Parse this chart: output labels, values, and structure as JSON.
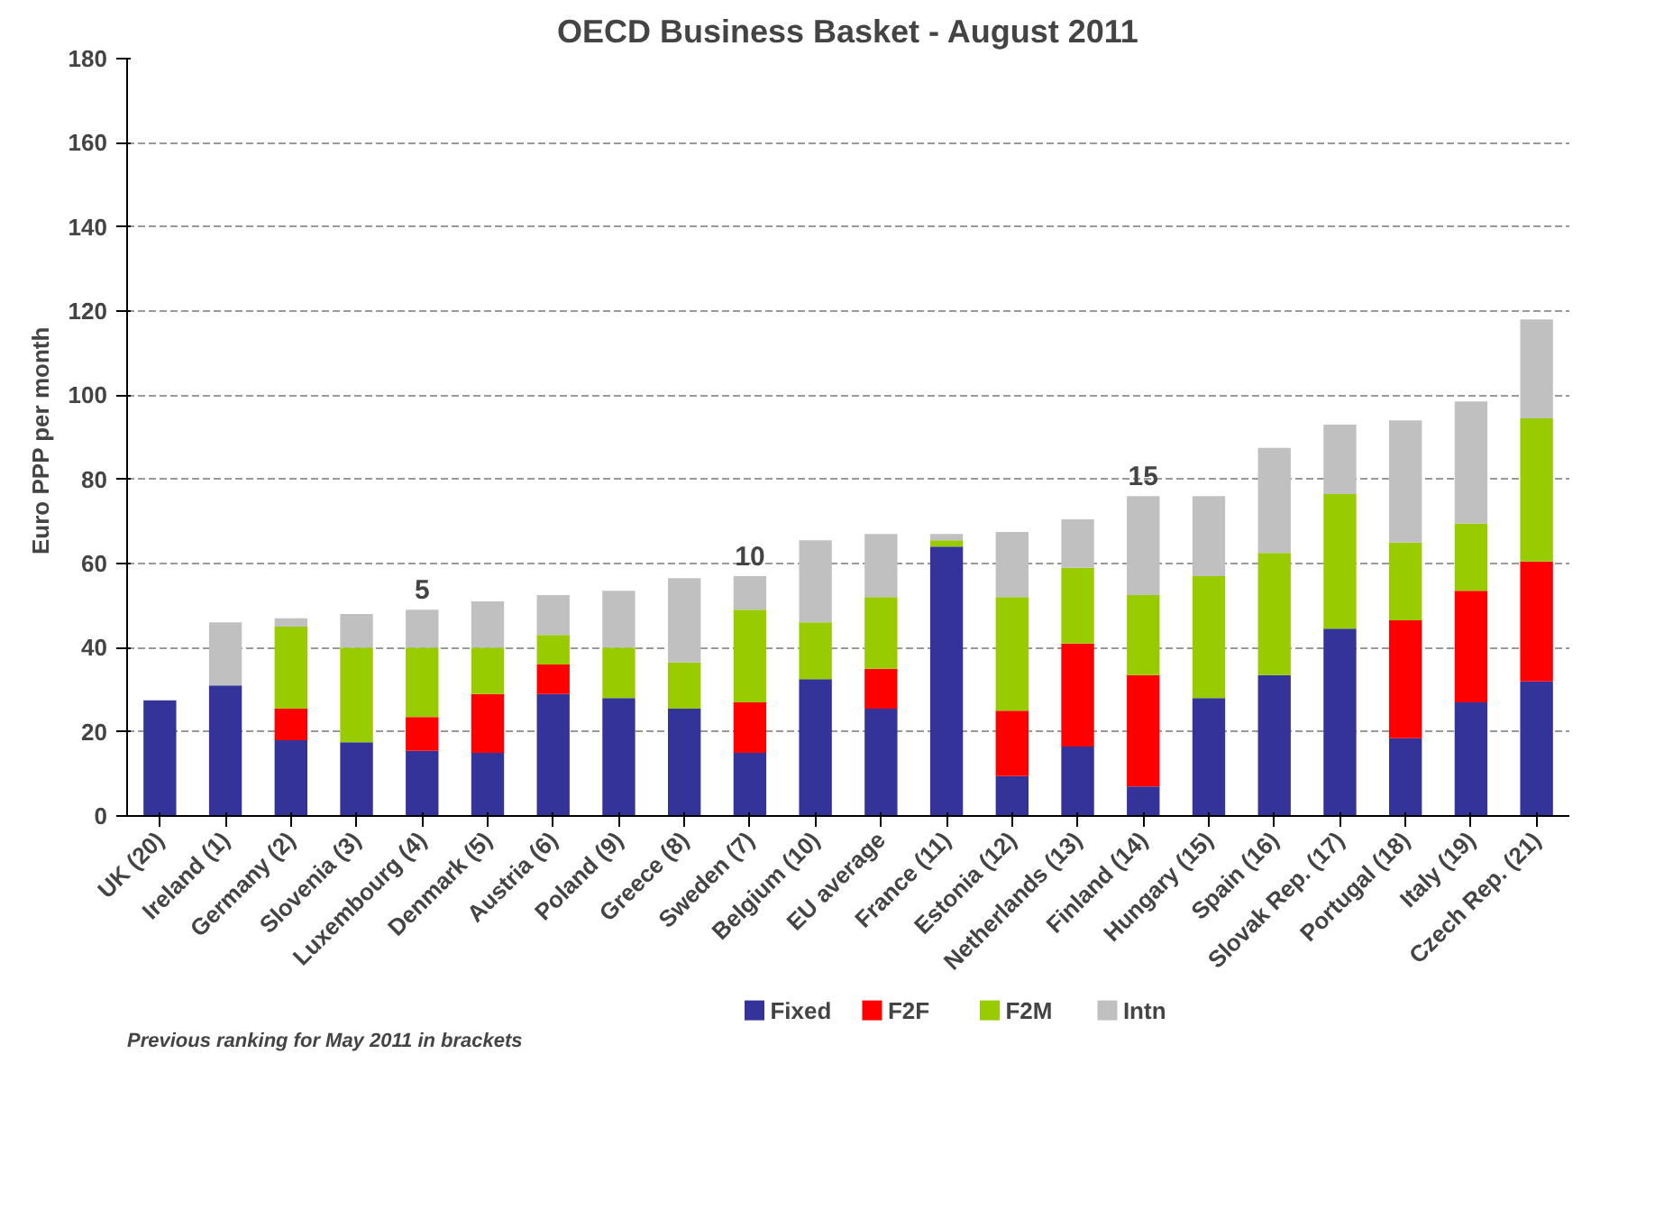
{
  "chart_data": {
    "type": "bar",
    "stacked": true,
    "title": "OECD Business Basket - August 2011",
    "ylabel": "Euro  PPP per month",
    "categories": [
      "UK (20)",
      "Ireland (1)",
      "Germany (2)",
      "Slovenia (3)",
      "Luxembourg (4)",
      "Denmark (5)",
      "Austria (6)",
      "Poland (9)",
      "Greece (8)",
      "Sweden (7)",
      "Belgium (10)",
      "EU average",
      "France (11)",
      "Estonia (12)",
      "Netherlands (13)",
      "Finland (14)",
      "Hungary (15)",
      "Spain (16)",
      "Slovak Rep. (17)",
      "Portugal (18)",
      "Italy (19)",
      "Czech Rep. (21)"
    ],
    "series": [
      {
        "name": "Fixed",
        "color": "#333399",
        "values": [
          27.5,
          31,
          18,
          17.5,
          15.5,
          15,
          29,
          28,
          25.5,
          15,
          32.5,
          25.5,
          64,
          9.5,
          16.5,
          7,
          28,
          33.5,
          44.5,
          18.5,
          27,
          32
        ]
      },
      {
        "name": "F2F",
        "color": "#ff0000",
        "values": [
          0,
          0,
          7.5,
          0,
          8,
          14,
          7,
          0,
          0,
          12,
          0,
          9.5,
          0,
          15.5,
          24.5,
          26.5,
          0,
          0,
          0,
          28,
          26.5,
          28.5
        ]
      },
      {
        "name": "F2M",
        "color": "#99cc00",
        "values": [
          0,
          0,
          19.5,
          22.5,
          16.5,
          11,
          7,
          12,
          11,
          22,
          13.5,
          17,
          1.5,
          27,
          18,
          19,
          29,
          29,
          32,
          18.5,
          16,
          34
        ]
      },
      {
        "name": "Intn",
        "color": "#c0c0c0",
        "values": [
          0,
          15,
          2,
          8,
          9,
          11,
          9.5,
          13.5,
          20,
          8,
          19.5,
          15,
          1.5,
          15.5,
          11.5,
          23.5,
          19,
          25,
          16.5,
          29,
          29,
          23.5
        ]
      }
    ],
    "ylim": [
      0,
      180
    ],
    "yticks": [
      0,
      20,
      40,
      60,
      80,
      100,
      120,
      140,
      160,
      180
    ],
    "grid": "y",
    "legend": "bottom",
    "annotations": [
      {
        "text": "5",
        "x": "Luxembourg (4)",
        "y": 49
      },
      {
        "text": "10",
        "x": "Sweden (7)",
        "y": 57
      },
      {
        "text": "15",
        "x": "Finland (14)",
        "y": 76
      },
      "Previous ranking for May 2011 in brackets"
    ]
  }
}
